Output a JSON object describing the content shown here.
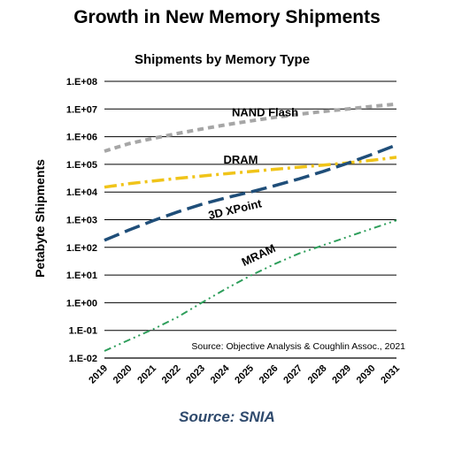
{
  "page": {
    "title": "Growth in New Memory Shipments",
    "footer_source": "Source: SNIA"
  },
  "chart_data": {
    "type": "line",
    "title": "Shipments by Memory Type",
    "ylabel": "Petabyte Shipments",
    "xlabel": "",
    "yscale": "log",
    "ylim": [
      0.01,
      100000000
    ],
    "y_tick_labels": [
      "1.E-02",
      "1.E-01",
      "1.E+00",
      "1.E+01",
      "1.E+02",
      "1.E+03",
      "1.E+04",
      "1.E+05",
      "1.E+06",
      "1.E+07",
      "1.E+08"
    ],
    "x": [
      "2019",
      "2020",
      "2021",
      "2022",
      "2023",
      "2024",
      "2025",
      "2026",
      "2027",
      "2028",
      "2029",
      "2030",
      "2031"
    ],
    "grid": "horizontal",
    "legend": "none (series labeled inline)",
    "annotation": "Source: Objective Analysis & Coughlin Assoc., 2021",
    "series": [
      {
        "name": "NAND Flash",
        "color": "#a6a6a6",
        "dash": "dashed",
        "values": [
          300000,
          560000,
          870000,
          1300000,
          1900000,
          2700000,
          3700000,
          5000000,
          6500000,
          8200000,
          10000000,
          12500000,
          15000000
        ]
      },
      {
        "name": "DRAM",
        "color": "#f0c419",
        "dash": "dash-dot",
        "values": [
          15000,
          20000,
          25000,
          31000,
          38000,
          46000,
          55000,
          66000,
          79000,
          94000,
          113000,
          140000,
          180000
        ]
      },
      {
        "name": "3D XPoint",
        "color": "#1f4e79",
        "dash": "long-dash",
        "values": [
          180,
          420,
          920,
          1900,
          3600,
          6200,
          10000,
          17000,
          30000,
          56000,
          110000,
          230000,
          500000
        ]
      },
      {
        "name": "MRAM",
        "color": "#2e9e5b",
        "dash": "dash-dot-dot",
        "values": [
          0.018,
          0.045,
          0.11,
          0.3,
          1.0,
          3.2,
          9.5,
          25,
          60,
          120,
          240,
          480,
          950
        ]
      }
    ]
  }
}
